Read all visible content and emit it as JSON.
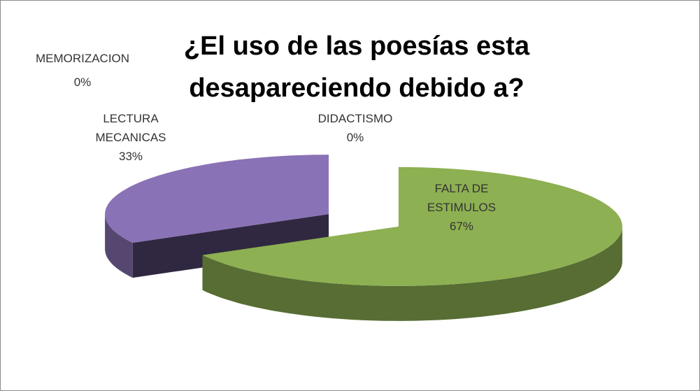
{
  "chart_data": {
    "type": "pie3d",
    "title": "¿El uso de las poesías esta desapareciendo debido a?",
    "categories": [
      "DIDACTISMO",
      "FALTA DE ESTIMULOS",
      "LECTURA MECANICAS",
      "MEMORIZACION"
    ],
    "values": [
      0,
      67,
      33,
      0
    ],
    "value_labels": [
      "0%",
      "67%",
      "33%",
      "0%"
    ],
    "colors": [
      "#4f81bd",
      "#8db052",
      "#8a72b6",
      "#4bacc6"
    ]
  }
}
